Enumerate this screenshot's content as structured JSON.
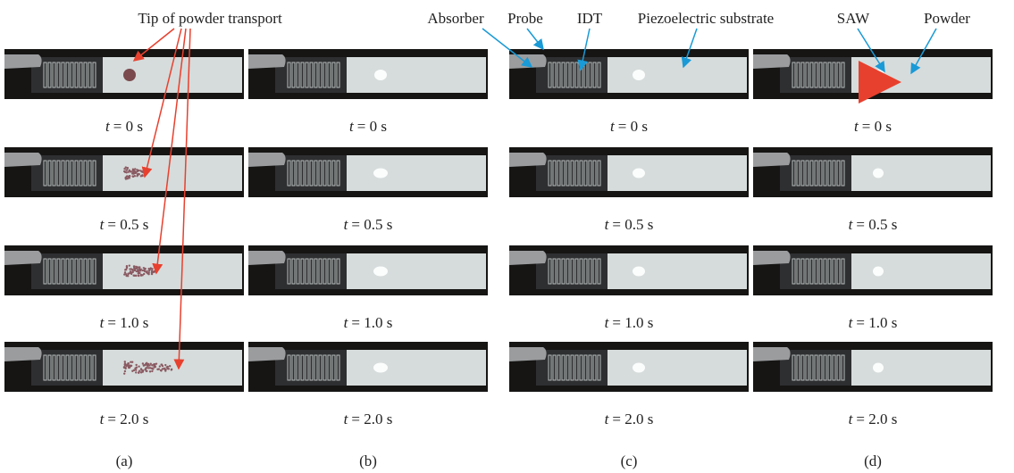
{
  "annotations": {
    "tip": "Tip of powder transport",
    "absorber": "Absorber",
    "probe": "Probe",
    "idt": "IDT",
    "substrate": "Piezoelectric substrate",
    "saw": "SAW",
    "powder": "Powder"
  },
  "panels": [
    {
      "label": "(a)",
      "frames": [
        {
          "symbol": "t",
          "time": "= 0 s"
        },
        {
          "symbol": "t",
          "time": "= 0.5 s"
        },
        {
          "symbol": "t",
          "time": "= 1.0 s"
        },
        {
          "symbol": "t",
          "time": "= 2.0 s"
        }
      ]
    },
    {
      "label": "(b)",
      "frames": [
        {
          "symbol": "t",
          "time": "= 0 s"
        },
        {
          "symbol": "t",
          "time": "= 0.5 s"
        },
        {
          "symbol": "t",
          "time": "= 1.0 s"
        },
        {
          "symbol": "t",
          "time": "= 2.0 s"
        }
      ]
    },
    {
      "label": "(c)",
      "frames": [
        {
          "symbol": "t",
          "time": "= 0 s"
        },
        {
          "symbol": "t",
          "time": "= 0.5 s"
        },
        {
          "symbol": "t",
          "time": "= 1.0 s"
        },
        {
          "symbol": "t",
          "time": "= 2.0 s"
        }
      ]
    },
    {
      "label": "(d)",
      "frames": [
        {
          "symbol": "t",
          "time": "= 0 s"
        },
        {
          "symbol": "t",
          "time": "= 0.5 s"
        },
        {
          "symbol": "t",
          "time": "= 1.0 s"
        },
        {
          "symbol": "t",
          "time": "= 2.0 s"
        }
      ]
    }
  ]
}
